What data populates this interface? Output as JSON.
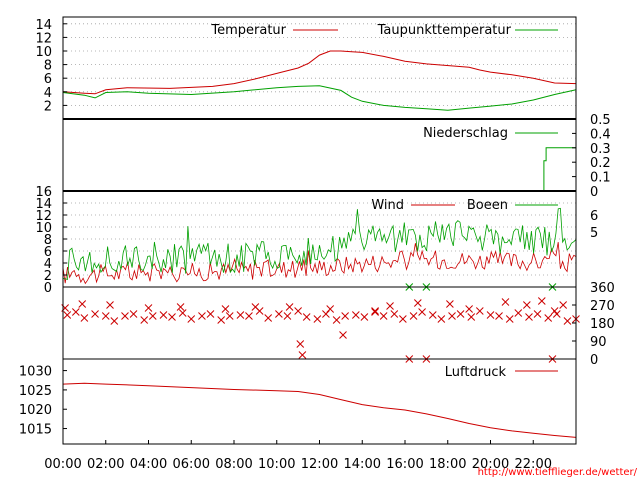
{
  "x_axis": {
    "tick_labels": [
      "00:00",
      "02:00",
      "04:00",
      "06:00",
      "08:00",
      "10:00",
      "12:00",
      "14:00",
      "16:00",
      "18:00",
      "20:00",
      "22:00"
    ],
    "range_hours": [
      0,
      24
    ]
  },
  "footer_url": "http://www.tiefflieger.de/wetter/",
  "colors": {
    "red": "#cc0000",
    "green": "#00a000",
    "grid": "#a0a0a0"
  },
  "chart_data": [
    {
      "type": "line",
      "panel": "temperature",
      "ylim": [
        0,
        15
      ],
      "yticks": [
        "2",
        "4",
        "6",
        "8",
        "10",
        "12",
        "14"
      ],
      "grid": true,
      "legend_position": "top",
      "series": [
        {
          "name": "Temperatur",
          "color": "#cc0000",
          "x": [
            0,
            1,
            1.5,
            2,
            3,
            5,
            7,
            8,
            9,
            10,
            11,
            11.5,
            12,
            12.5,
            13,
            13.5,
            14,
            15,
            16,
            17,
            19,
            19.5,
            20,
            21,
            22,
            23,
            24
          ],
          "y": [
            4.0,
            3.8,
            3.7,
            4.3,
            4.6,
            4.5,
            4.8,
            5.2,
            5.9,
            6.7,
            7.5,
            8.2,
            9.4,
            10.0,
            10.0,
            9.9,
            9.8,
            9.2,
            8.5,
            8.1,
            7.6,
            7.2,
            6.9,
            6.5,
            6.0,
            5.3,
            5.2
          ]
        },
        {
          "name": "Taupunkttemperatur",
          "color": "#00a000",
          "x": [
            0,
            1,
            1.5,
            2,
            3,
            4,
            6,
            8,
            10,
            11,
            12,
            13,
            13.5,
            14,
            15,
            16,
            17,
            18,
            19,
            20,
            21,
            22,
            23,
            24
          ],
          "y": [
            3.9,
            3.5,
            3.1,
            3.9,
            4.0,
            3.8,
            3.6,
            4.0,
            4.6,
            4.8,
            4.9,
            4.2,
            3.2,
            2.6,
            2.0,
            1.7,
            1.5,
            1.3,
            1.6,
            1.9,
            2.2,
            2.8,
            3.6,
            4.3
          ]
        }
      ]
    },
    {
      "type": "line",
      "panel": "precipitation",
      "ylim": [
        0,
        0.5
      ],
      "yticks": [
        "0",
        "0.1",
        "0.2",
        "0.3",
        "0.4",
        "0.5"
      ],
      "grid": false,
      "legend_position": "top-right",
      "series": [
        {
          "name": "Niederschlag",
          "color": "#00a000",
          "x": [
            0,
            22.5,
            22.5,
            22.6,
            22.6,
            24
          ],
          "y": [
            0,
            0,
            0.21,
            0.21,
            0.3,
            0.3
          ]
        }
      ]
    },
    {
      "type": "line",
      "panel": "wind",
      "ylim": [
        0,
        16
      ],
      "yticks_left": [
        "0",
        "2",
        "4",
        "6",
        "8",
        "10",
        "12",
        "14",
        "16"
      ],
      "yticks_right": [
        "5",
        "6"
      ],
      "grid": true,
      "legend_position": "top-right",
      "series": [
        {
          "name": "Wind",
          "color": "#cc0000",
          "x": [
            0,
            2,
            4,
            6,
            8,
            10,
            12,
            13,
            14,
            15,
            16,
            17,
            18,
            19,
            20,
            21,
            22,
            23,
            24
          ],
          "y": [
            2.0,
            2.2,
            2.3,
            2.5,
            2.7,
            3.0,
            3.3,
            3.6,
            4.0,
            4.2,
            4.4,
            4.5,
            4.6,
            4.5,
            4.4,
            4.3,
            4.2,
            4.1,
            4.0
          ]
        },
        {
          "name": "Boeen",
          "color": "#00a000",
          "x": [
            0,
            2,
            4,
            6,
            8,
            10,
            12,
            13,
            14,
            15,
            16,
            17,
            18,
            19,
            20,
            21,
            22,
            23,
            24
          ],
          "y": [
            3.8,
            4.2,
            4.4,
            4.7,
            5.0,
            5.5,
            6.3,
            6.9,
            7.6,
            8.0,
            8.3,
            8.4,
            8.5,
            8.4,
            8.2,
            8.0,
            7.8,
            7.6,
            7.4
          ]
        }
      ]
    },
    {
      "type": "scatter",
      "panel": "wind-direction",
      "ylim": [
        0,
        360
      ],
      "yticks": [
        "0",
        "90",
        "180",
        "270",
        "360"
      ],
      "grid": false,
      "series": [
        {
          "color": "#cc0000",
          "marker": "x",
          "x": [
            0.2,
            0.6,
            1.0,
            1.5,
            2.0,
            2.4,
            2.9,
            3.3,
            3.8,
            4.2,
            4.7,
            5.1,
            5.6,
            6.0,
            6.5,
            6.9,
            7.4,
            7.8,
            8.3,
            8.7,
            9.2,
            9.6,
            10.1,
            10.5,
            11.0,
            11.4,
            11.9,
            12.3,
            12.8,
            13.2,
            13.7,
            14.1,
            14.6,
            15.0,
            15.5,
            15.9,
            16.4,
            16.8,
            17.3,
            17.7,
            18.2,
            18.6,
            19.1,
            19.5,
            20.0,
            20.4,
            20.9,
            21.3,
            21.8,
            22.2,
            22.7,
            23.1,
            23.6,
            24.0,
            0.1,
            0.9,
            2.2,
            4.0,
            5.5,
            7.6,
            9.0,
            10.6,
            11.1,
            11.2,
            12.5,
            13.1,
            14.6,
            15.3,
            16.6,
            18.1,
            19.0,
            20.7,
            21.7,
            22.4,
            23.0,
            23.4,
            16.2,
            17.0,
            22.9
          ],
          "y": [
            220,
            235,
            205,
            225,
            215,
            190,
            215,
            225,
            195,
            215,
            220,
            210,
            230,
            200,
            215,
            225,
            195,
            215,
            220,
            215,
            240,
            205,
            225,
            215,
            240,
            210,
            200,
            225,
            195,
            215,
            220,
            210,
            235,
            215,
            225,
            200,
            215,
            235,
            220,
            200,
            215,
            225,
            210,
            240,
            220,
            215,
            200,
            230,
            210,
            225,
            205,
            225,
            190,
            200,
            255,
            275,
            270,
            255,
            260,
            250,
            260,
            260,
            75,
            20,
            250,
            120,
            240,
            265,
            280,
            275,
            250,
            285,
            270,
            290,
            240,
            270,
            0,
            0,
            0
          ]
        },
        {
          "color": "#00a000",
          "marker": "x",
          "x": [
            16.2,
            17.0,
            22.9
          ],
          "y": [
            360,
            360,
            360
          ]
        }
      ]
    },
    {
      "type": "line",
      "panel": "pressure",
      "ylim": [
        1011,
        1033
      ],
      "yticks": [
        "1015",
        "1020",
        "1025",
        "1030"
      ],
      "grid": false,
      "legend_position": "top-right",
      "series": [
        {
          "name": "Luftdruck",
          "color": "#cc0000",
          "x": [
            0,
            1,
            2,
            4,
            6,
            8,
            10,
            11,
            12,
            13,
            14,
            15,
            16,
            17,
            18,
            19,
            20,
            21,
            22,
            23,
            24
          ],
          "y": [
            1026.5,
            1026.7,
            1026.5,
            1026.1,
            1025.6,
            1025.1,
            1024.8,
            1024.6,
            1023.8,
            1022.5,
            1021.2,
            1020.4,
            1019.8,
            1018.8,
            1017.6,
            1016.3,
            1015.2,
            1014.4,
            1013.8,
            1013.2,
            1012.7
          ]
        }
      ]
    }
  ]
}
